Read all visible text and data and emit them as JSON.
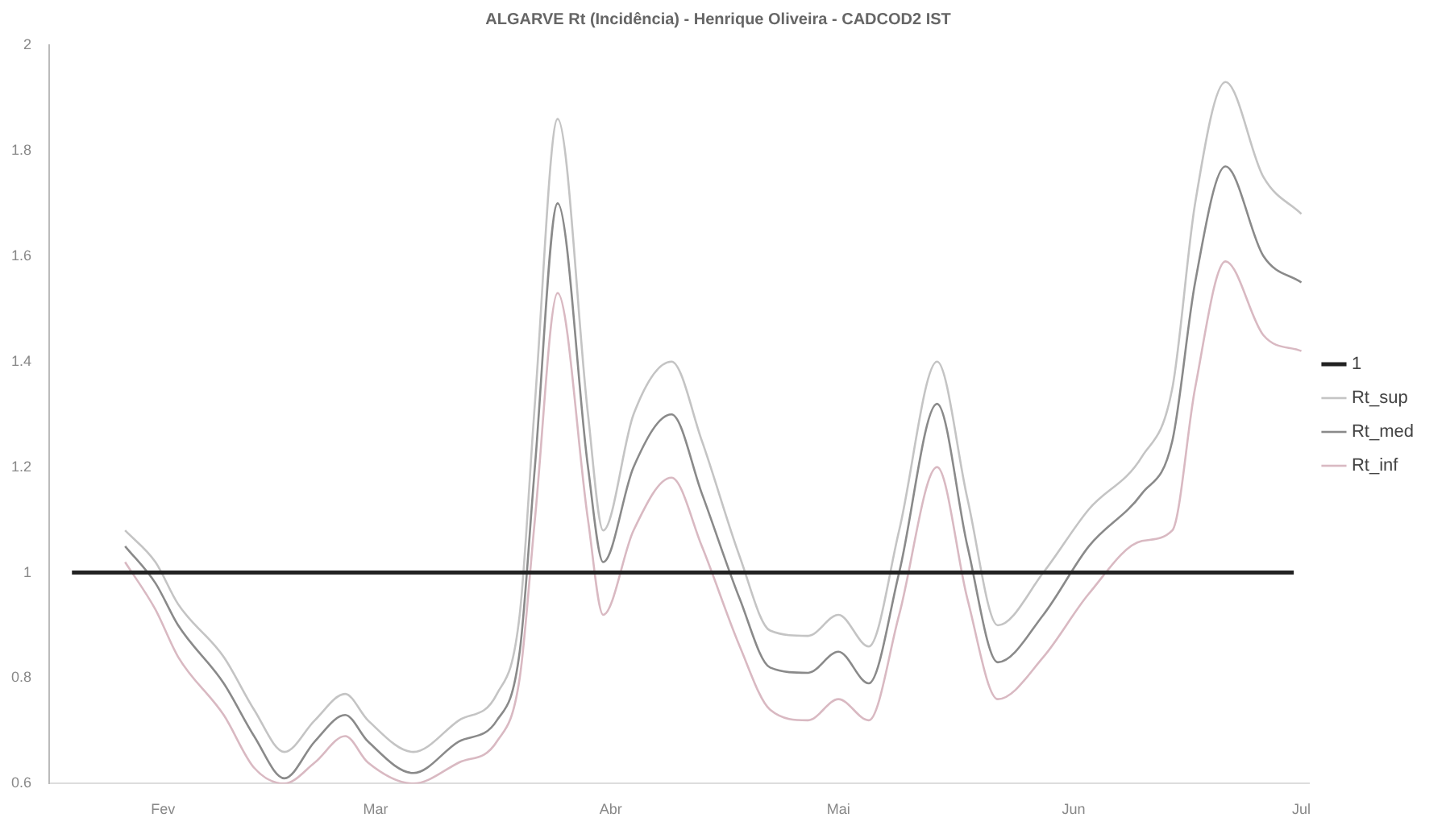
{
  "chart_data": {
    "type": "line",
    "title": "ALGARVE Rt (Incidência) - Henrique Oliveira - CADCOD2 IST",
    "x": [
      "--01-27",
      "--01-31",
      "--02-03",
      "--02-09",
      "--02-13",
      "--02-17",
      "--02-21",
      "--02-25",
      "--02-28",
      "--03-06",
      "--03-12",
      "--03-17",
      "--03-20",
      "--03-22",
      "--03-25",
      "--03-29",
      "--03-31",
      "--04-04",
      "--04-09",
      "--04-13",
      "--04-18",
      "--04-22",
      "--04-27",
      "--05-01",
      "--05-05",
      "--05-09",
      "--05-14",
      "--05-18",
      "--05-22",
      "--05-28",
      "--06-03",
      "--06-10",
      "--06-14",
      "--06-17",
      "--06-21",
      "--06-26",
      "--07-01"
    ],
    "series": [
      {
        "name": "1",
        "color": "#222222",
        "x": [
          "--01-20",
          "--06-30"
        ],
        "values": [
          1,
          1
        ]
      },
      {
        "name": "Rt_sup",
        "color": "#c4c4c4",
        "values": [
          1.08,
          1.02,
          0.94,
          0.84,
          0.74,
          0.66,
          0.72,
          0.77,
          0.72,
          0.66,
          0.72,
          0.77,
          0.92,
          1.32,
          1.86,
          1.3,
          1.08,
          1.3,
          1.4,
          1.25,
          1.03,
          0.89,
          0.88,
          0.92,
          0.86,
          1.08,
          1.4,
          1.14,
          0.9,
          1.0,
          1.12,
          1.22,
          1.35,
          1.7,
          1.93,
          1.75,
          1.68
        ]
      },
      {
        "name": "Rt_med",
        "color": "#8a8a8a",
        "values": [
          1.05,
          0.98,
          0.9,
          0.79,
          0.69,
          0.61,
          0.68,
          0.73,
          0.68,
          0.62,
          0.68,
          0.72,
          0.85,
          1.2,
          1.7,
          1.2,
          1.02,
          1.2,
          1.3,
          1.15,
          0.95,
          0.82,
          0.81,
          0.85,
          0.79,
          1.0,
          1.32,
          1.05,
          0.83,
          0.92,
          1.05,
          1.15,
          1.25,
          1.55,
          1.77,
          1.6,
          1.55
        ]
      },
      {
        "name": "Rt_inf",
        "color": "#d9b9c2",
        "values": [
          1.02,
          0.93,
          0.84,
          0.73,
          0.63,
          0.6,
          0.64,
          0.69,
          0.64,
          0.6,
          0.64,
          0.68,
          0.8,
          1.1,
          1.53,
          1.1,
          0.92,
          1.08,
          1.18,
          1.05,
          0.86,
          0.74,
          0.72,
          0.76,
          0.72,
          0.92,
          1.2,
          0.95,
          0.76,
          0.84,
          0.96,
          1.06,
          1.08,
          1.35,
          1.59,
          1.45,
          1.42
        ]
      }
    ],
    "xlim": [
      "--01-17",
      "--07-02"
    ],
    "xticks": [
      {
        "value": "--02-01",
        "label": "Fev"
      },
      {
        "value": "--03-01",
        "label": "Mar"
      },
      {
        "value": "--04-01",
        "label": "Abr"
      },
      {
        "value": "--05-01",
        "label": "Mai"
      },
      {
        "value": "--06-01",
        "label": "Jun"
      },
      {
        "value": "--07-01",
        "label": "Jul"
      }
    ],
    "ylim": [
      0.6,
      2.0
    ],
    "yticks": [
      0.6,
      0.8,
      1.0,
      1.2,
      1.4,
      1.6,
      1.8,
      2.0
    ],
    "grid": false,
    "legend": "right",
    "marker": "none",
    "line_style": "solid"
  }
}
